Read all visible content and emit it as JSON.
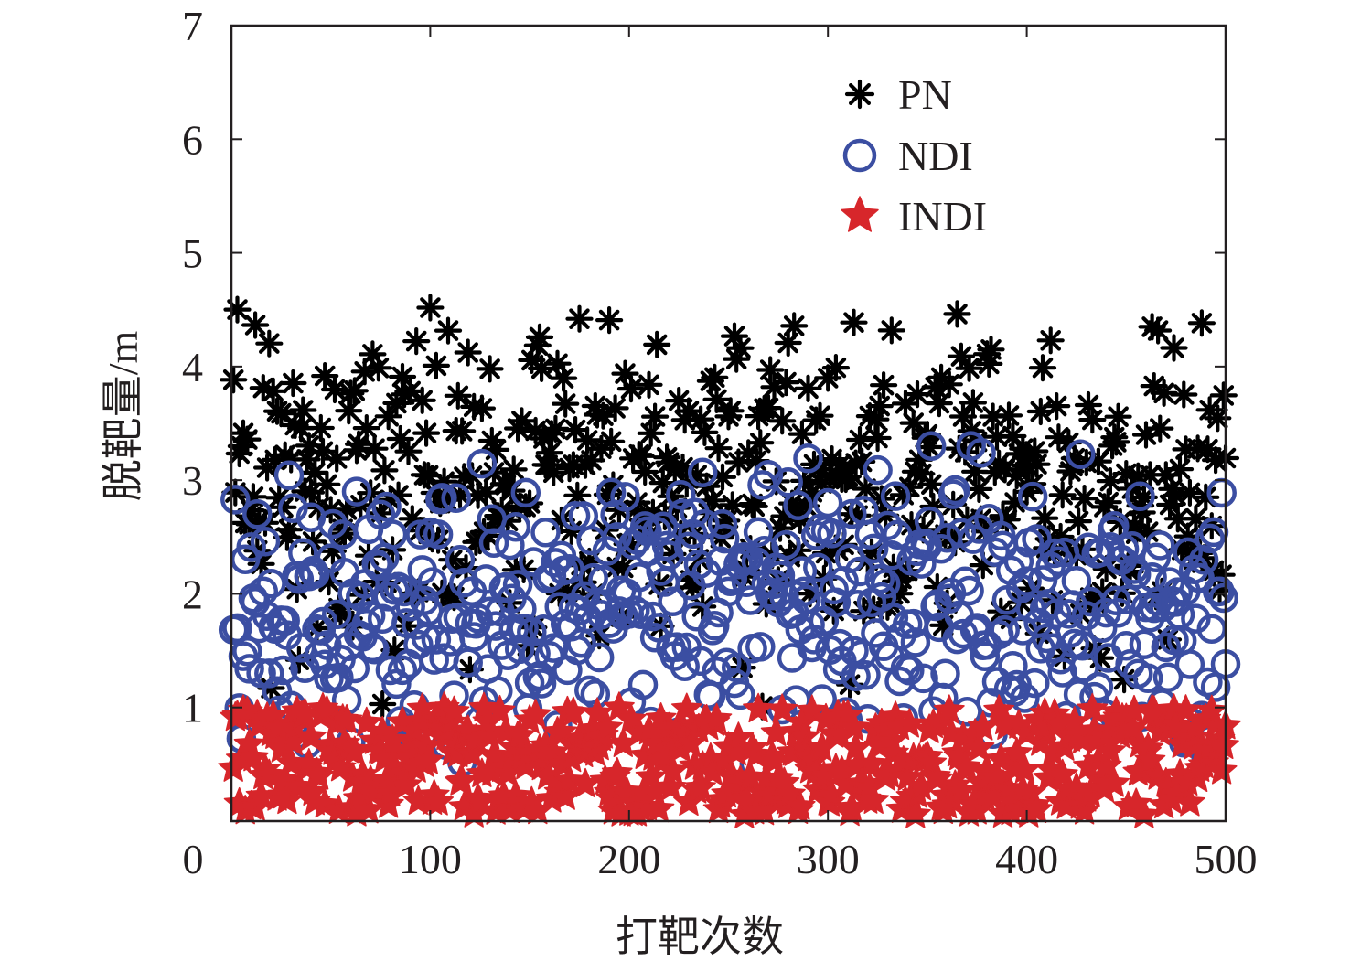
{
  "chart_data": {
    "type": "scatter",
    "title": "",
    "xlabel": "打靶次数",
    "ylabel": "脱靶量/m",
    "xlim": [
      0,
      500
    ],
    "ylim": [
      0,
      7
    ],
    "xticks": [
      "0",
      "100",
      "200",
      "300",
      "400",
      "500"
    ],
    "yticks": [
      "1",
      "2",
      "3",
      "4",
      "5",
      "6",
      "7"
    ],
    "grid": false,
    "legend_position": "top-right",
    "series": [
      {
        "name": "PN",
        "marker": "asterisk",
        "color": "#000000",
        "distribution": {
          "count": 500,
          "x_range": [
            1,
            500
          ],
          "y_range": [
            0.9,
            4.6
          ]
        }
      },
      {
        "name": "NDI",
        "marker": "circle",
        "color": "#3b4ea2",
        "distribution": {
          "count": 500,
          "x_range": [
            1,
            500
          ],
          "y_range": [
            0.3,
            3.5
          ]
        }
      },
      {
        "name": "INDI",
        "marker": "star",
        "color": "#d7262b",
        "distribution": {
          "count": 500,
          "x_range": [
            1,
            500
          ],
          "y_range": [
            0.05,
            1.0
          ]
        }
      }
    ]
  }
}
